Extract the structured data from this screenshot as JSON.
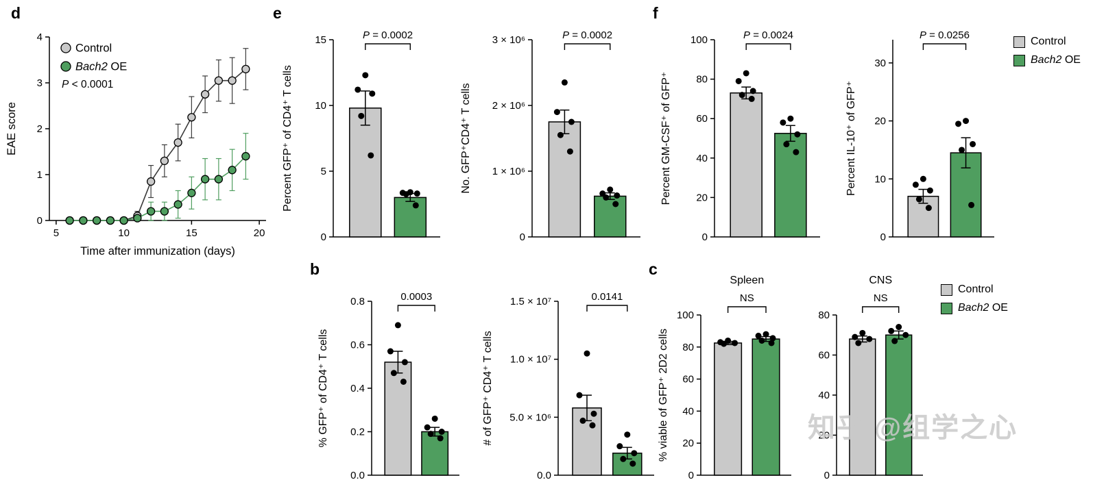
{
  "watermark": "知乎 @组学之心",
  "panel_labels": {
    "d": "d",
    "e": "e",
    "f": "f",
    "b": "b",
    "c": "c"
  },
  "colors": {
    "control_fill": "#c9c9c9",
    "control_line": "#3b3b3b",
    "bach2_fill": "#4f9e5f",
    "bach2_line": "#4f9e5f",
    "point": "#000000",
    "axis": "#000000"
  },
  "legend_items": [
    {
      "color_key": "control_fill",
      "parts": [
        {
          "t": "Control",
          "i": false
        }
      ]
    },
    {
      "color_key": "bach2_fill",
      "parts": [
        {
          "t": "Bach2",
          "i": true
        },
        {
          "t": " OE",
          "i": false
        }
      ]
    }
  ],
  "chart_data": [
    {
      "id": "d",
      "type": "line",
      "xlabel": "Time after immunization (days)",
      "ylabel": "EAE score",
      "xlim": [
        4.5,
        20.5
      ],
      "ylim": [
        0,
        4
      ],
      "xticks": [
        5,
        10,
        15,
        20
      ],
      "yticks": [
        0,
        1,
        2,
        3,
        4
      ],
      "annotation": "P < 0.0001",
      "legend_position": "top-left-inside",
      "x": [
        6,
        7,
        8,
        9,
        10,
        11,
        12,
        13,
        14,
        15,
        16,
        17,
        18,
        19
      ],
      "series": [
        {
          "name_parts": [
            {
              "t": "Control",
              "i": false
            }
          ],
          "color_key": "control",
          "values": [
            0,
            0,
            0,
            0,
            0,
            0.1,
            0.85,
            1.3,
            1.7,
            2.25,
            2.75,
            3.05,
            3.05,
            3.3
          ],
          "errors": [
            0,
            0,
            0,
            0,
            0,
            0.1,
            0.35,
            0.35,
            0.4,
            0.45,
            0.4,
            0.45,
            0.5,
            0.45
          ]
        },
        {
          "name_parts": [
            {
              "t": "Bach2",
              "i": true
            },
            {
              "t": " OE",
              "i": false
            }
          ],
          "color_key": "bach2",
          "values": [
            0,
            0,
            0,
            0,
            0,
            0.05,
            0.2,
            0.2,
            0.35,
            0.6,
            0.9,
            0.9,
            1.1,
            1.4
          ],
          "errors": [
            0,
            0,
            0,
            0,
            0,
            0.05,
            0.2,
            0.2,
            0.3,
            0.35,
            0.45,
            0.45,
            0.45,
            0.5
          ]
        }
      ]
    },
    {
      "id": "e1",
      "panel": "e",
      "type": "bar",
      "ylabel": "Percent GFP⁺ of CD4⁺ T cells",
      "ylim": [
        0,
        15
      ],
      "yticks": [
        0,
        5,
        10,
        15
      ],
      "ytick_labels": [
        "0",
        "5",
        "10",
        "15"
      ],
      "sig_label": "P = 0.0002",
      "categories": [
        "Control",
        "Bach2 OE"
      ],
      "series": [
        {
          "name": "Control",
          "color_key": "control",
          "mean": 9.8,
          "sem": 1.3,
          "points": [
            12.3,
            11.2,
            10.9,
            9.2,
            6.2
          ]
        },
        {
          "name": "Bach2 OE",
          "color_key": "bach2",
          "mean": 3.0,
          "sem": 0.3,
          "points": [
            3.4,
            3.35,
            3.3,
            3.25,
            2.4
          ]
        }
      ]
    },
    {
      "id": "e2",
      "panel": "e",
      "type": "bar",
      "ylabel": "No. GFP⁺CD4⁺ T cells",
      "ylim": [
        0,
        3000000
      ],
      "yticks": [
        0,
        1000000,
        2000000,
        3000000
      ],
      "ytick_labels": [
        "0",
        "1 × 10⁶",
        "2 × 10⁶",
        "3 × 10⁶"
      ],
      "sig_label": "P = 0.0002",
      "categories": [
        "Control",
        "Bach2 OE"
      ],
      "series": [
        {
          "name": "Control",
          "color_key": "control",
          "mean": 1750000,
          "sem": 180000,
          "points": [
            2350000,
            1900000,
            1750000,
            1550000,
            1300000
          ]
        },
        {
          "name": "Bach2 OE",
          "color_key": "bach2",
          "mean": 620000,
          "sem": 50000,
          "points": [
            720000,
            660000,
            630000,
            600000,
            500000
          ]
        }
      ]
    },
    {
      "id": "f1",
      "panel": "f",
      "type": "bar",
      "ylabel": "Percent GM-CSF⁺ of GFP⁺",
      "ylim": [
        0,
        100
      ],
      "yticks": [
        0,
        20,
        40,
        60,
        80,
        100
      ],
      "ytick_labels": [
        "0",
        "20",
        "40",
        "60",
        "80",
        "100"
      ],
      "sig_label": "P = 0.0024",
      "categories": [
        "Control",
        "Bach2 OE"
      ],
      "series": [
        {
          "name": "Control",
          "color_key": "control",
          "mean": 73,
          "sem": 3,
          "points": [
            83,
            79,
            74,
            72,
            70
          ]
        },
        {
          "name": "Bach2 OE",
          "color_key": "bach2",
          "mean": 52.5,
          "sem": 4,
          "points": [
            60,
            58,
            52,
            47,
            43
          ]
        }
      ]
    },
    {
      "id": "f2",
      "panel": "f",
      "type": "bar",
      "ylabel": "Percent IL-10⁺ of GFP⁺",
      "ylim": [
        0,
        34
      ],
      "yticks": [
        0,
        10,
        20,
        30
      ],
      "ytick_labels": [
        "0",
        "10",
        "20",
        "30"
      ],
      "sig_label": "P = 0.0256",
      "categories": [
        "Control",
        "Bach2 OE"
      ],
      "series": [
        {
          "name": "Control",
          "color_key": "control",
          "mean": 7,
          "sem": 1.2,
          "points": [
            10,
            9,
            8,
            6.5,
            5
          ]
        },
        {
          "name": "Bach2 OE",
          "color_key": "bach2",
          "mean": 14.5,
          "sem": 2.6,
          "points": [
            20,
            19.5,
            16,
            15,
            5.5
          ]
        }
      ]
    },
    {
      "id": "b1",
      "panel": "b",
      "type": "bar",
      "ylabel": "% GFP⁺ of CD4⁺ T cells",
      "ylim": [
        0,
        0.8
      ],
      "yticks": [
        0,
        0.2,
        0.4,
        0.6,
        0.8
      ],
      "ytick_labels": [
        "0.0",
        "0.2",
        "0.4",
        "0.6",
        "0.8"
      ],
      "sig_label": "0.0003",
      "categories": [
        "Control",
        "Bach2 OE"
      ],
      "series": [
        {
          "name": "Control",
          "color_key": "control",
          "mean": 0.52,
          "sem": 0.05,
          "points": [
            0.69,
            0.57,
            0.52,
            0.47,
            0.43
          ]
        },
        {
          "name": "Bach2 OE",
          "color_key": "bach2",
          "mean": 0.2,
          "sem": 0.02,
          "points": [
            0.26,
            0.22,
            0.2,
            0.19,
            0.17
          ]
        }
      ]
    },
    {
      "id": "b2",
      "panel": "b",
      "type": "bar",
      "ylabel": "# of GFP⁺ CD4⁺ T cells",
      "ylim": [
        0,
        15000000
      ],
      "yticks": [
        0,
        5000000,
        10000000,
        15000000
      ],
      "ytick_labels": [
        "0.0",
        "5.0 × 10⁶",
        "1.0 × 10⁷",
        "1.5 × 10⁷"
      ],
      "sig_label": "0.0141",
      "categories": [
        "Control",
        "Bach2 OE"
      ],
      "series": [
        {
          "name": "Control",
          "color_key": "control",
          "mean": 5800000,
          "sem": 1100000,
          "points": [
            10500000,
            6900000,
            5300000,
            4700000,
            4300000
          ]
        },
        {
          "name": "Bach2 OE",
          "color_key": "bach2",
          "mean": 1900000,
          "sem": 500000,
          "points": [
            3500000,
            2500000,
            1900000,
            1400000,
            1000000
          ]
        }
      ]
    },
    {
      "id": "c1",
      "panel": "c",
      "type": "bar",
      "title": "Spleen",
      "ylabel": "% viable of GFP⁺ 2D2 cells",
      "ylim": [
        0,
        100
      ],
      "yticks": [
        0,
        20,
        40,
        60,
        80,
        100
      ],
      "ytick_labels": [
        "0",
        "20",
        "40",
        "60",
        "80",
        "100"
      ],
      "sig_label": "NS",
      "categories": [
        "Control",
        "Bach2 OE"
      ],
      "series": [
        {
          "name": "Control",
          "color_key": "control",
          "mean": 82.5,
          "sem": 1,
          "points": [
            84,
            83,
            82.5,
            82
          ]
        },
        {
          "name": "Bach2 OE",
          "color_key": "bach2",
          "mean": 85,
          "sem": 1.5,
          "points": [
            88,
            87,
            85.5,
            84,
            82.5
          ]
        }
      ]
    },
    {
      "id": "c2",
      "panel": "c",
      "type": "bar",
      "title": "CNS",
      "ylabel": "",
      "ylim": [
        0,
        80
      ],
      "yticks": [
        0,
        20,
        40,
        60,
        80
      ],
      "ytick_labels": [
        "0",
        "20",
        "40",
        "60",
        "80"
      ],
      "sig_label": "NS",
      "categories": [
        "Control",
        "Bach2 OE"
      ],
      "series": [
        {
          "name": "Control",
          "color_key": "control",
          "mean": 68,
          "sem": 1.5,
          "points": [
            71,
            69,
            68,
            66
          ]
        },
        {
          "name": "Bach2 OE",
          "color_key": "bach2",
          "mean": 70,
          "sem": 2,
          "points": [
            74,
            72,
            70,
            67
          ]
        }
      ]
    }
  ]
}
